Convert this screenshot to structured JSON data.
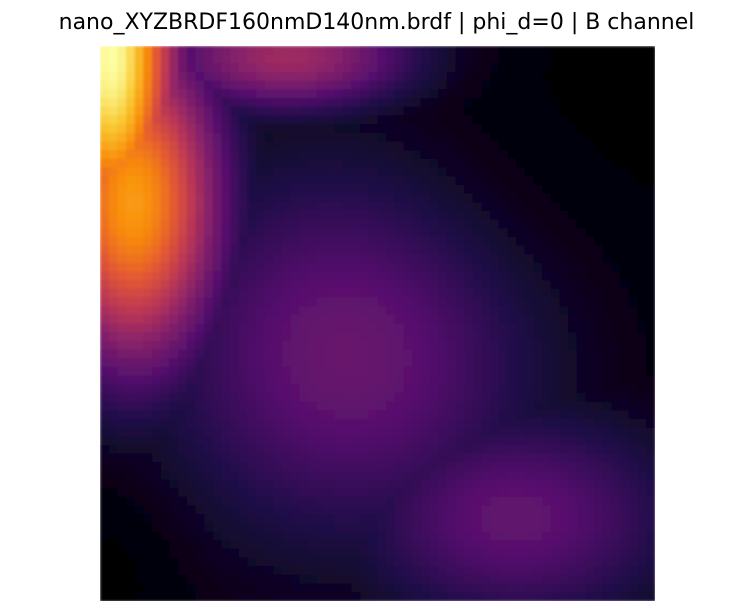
{
  "figure": {
    "title": "nano_XYZBRDF160nmD140nm.brdf | phi_d=0 | B channel"
  },
  "chart_data": {
    "type": "heatmap",
    "title": "nano_XYZBRDF160nmD140nm.brdf | phi_d=0 | B channel",
    "xlabel": "",
    "ylabel": "",
    "colormap": "inferno",
    "axes_visible": false,
    "grid": false,
    "legend": "none",
    "value_range": [
      0,
      1
    ],
    "hotspots": [
      {
        "row": 0.02,
        "col": 0.02,
        "value": 1.0,
        "spread_row": 0.35,
        "spread_col": 0.12
      },
      {
        "row": 0.28,
        "col": 0.06,
        "value": 0.78,
        "spread_row": 0.3,
        "spread_col": 0.16
      },
      {
        "row": 0.02,
        "col": 0.35,
        "value": 0.45,
        "spread_row": 0.1,
        "spread_col": 0.25
      },
      {
        "row": 0.55,
        "col": 0.45,
        "value": 0.3,
        "spread_row": 0.35,
        "spread_col": 0.35
      },
      {
        "row": 0.85,
        "col": 0.75,
        "value": 0.28,
        "spread_row": 0.2,
        "spread_col": 0.3
      }
    ]
  }
}
